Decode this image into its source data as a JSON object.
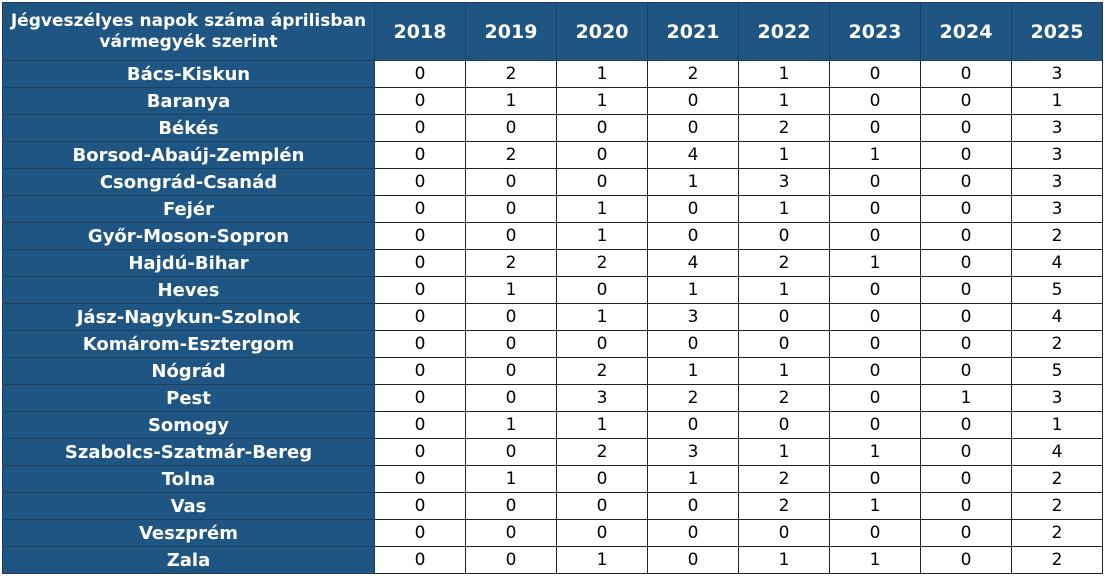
{
  "chart_data": {
    "type": "table",
    "title": "Jégveszélyes napok száma áprilisban vármegyék szerint",
    "years": [
      "2018",
      "2019",
      "2020",
      "2021",
      "2022",
      "2023",
      "2024",
      "2025"
    ],
    "rows": [
      {
        "county": "Bács-Kiskun",
        "values": [
          0,
          2,
          1,
          2,
          1,
          0,
          0,
          3
        ]
      },
      {
        "county": "Baranya",
        "values": [
          0,
          1,
          1,
          0,
          1,
          0,
          0,
          1
        ]
      },
      {
        "county": "Békés",
        "values": [
          0,
          0,
          0,
          0,
          2,
          0,
          0,
          3
        ]
      },
      {
        "county": "Borsod-Abaúj-Zemplén",
        "values": [
          0,
          2,
          0,
          4,
          1,
          1,
          0,
          3
        ]
      },
      {
        "county": "Csongrád-Csanád",
        "values": [
          0,
          0,
          0,
          1,
          3,
          0,
          0,
          3
        ]
      },
      {
        "county": "Fejér",
        "values": [
          0,
          0,
          1,
          0,
          1,
          0,
          0,
          3
        ]
      },
      {
        "county": "Győr-Moson-Sopron",
        "values": [
          0,
          0,
          1,
          0,
          0,
          0,
          0,
          2
        ]
      },
      {
        "county": "Hajdú-Bihar",
        "values": [
          0,
          2,
          2,
          4,
          2,
          1,
          0,
          4
        ]
      },
      {
        "county": "Heves",
        "values": [
          0,
          1,
          0,
          1,
          1,
          0,
          0,
          5
        ]
      },
      {
        "county": "Jász-Nagykun-Szolnok",
        "values": [
          0,
          0,
          1,
          3,
          0,
          0,
          0,
          4
        ]
      },
      {
        "county": "Komárom-Esztergom",
        "values": [
          0,
          0,
          0,
          0,
          0,
          0,
          0,
          2
        ]
      },
      {
        "county": "Nógrád",
        "values": [
          0,
          0,
          2,
          1,
          1,
          0,
          0,
          5
        ]
      },
      {
        "county": "Pest",
        "values": [
          0,
          0,
          3,
          2,
          2,
          0,
          1,
          3
        ]
      },
      {
        "county": "Somogy",
        "values": [
          0,
          1,
          1,
          0,
          0,
          0,
          0,
          1
        ]
      },
      {
        "county": "Szabolcs-Szatmár-Bereg",
        "values": [
          0,
          0,
          2,
          3,
          1,
          1,
          0,
          4
        ]
      },
      {
        "county": "Tolna",
        "values": [
          0,
          1,
          0,
          1,
          2,
          0,
          0,
          2
        ]
      },
      {
        "county": "Vas",
        "values": [
          0,
          0,
          0,
          0,
          2,
          1,
          0,
          2
        ]
      },
      {
        "county": "Veszprém",
        "values": [
          0,
          0,
          0,
          0,
          0,
          0,
          0,
          2
        ]
      },
      {
        "county": "Zala",
        "values": [
          0,
          0,
          1,
          0,
          1,
          1,
          0,
          2
        ]
      }
    ]
  }
}
